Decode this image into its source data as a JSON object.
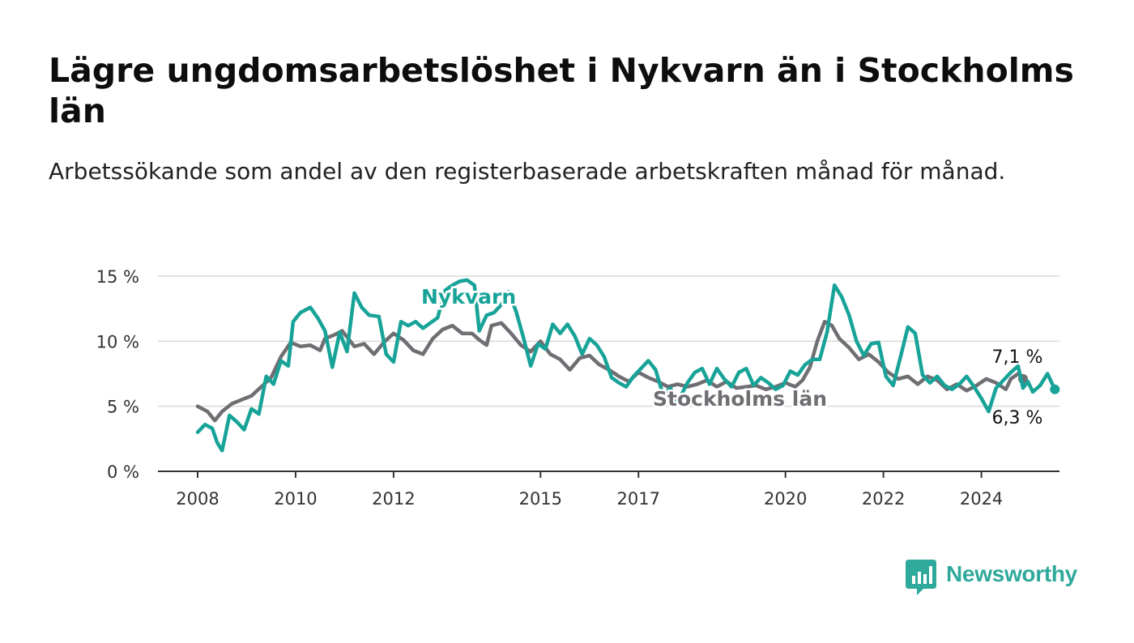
{
  "title": "Lägre ungdomsarbetslöshet i Nykvarn än i Stockholms län",
  "subtitle": "Arbetssökande som andel av den registerbaserade arbetskraften månad för månad.",
  "brand": {
    "name": "Newsworthy",
    "logo_icon": "bar-chart-speech-icon",
    "color": "#2ea99b"
  },
  "chart_data": {
    "type": "line",
    "x_unit": "year",
    "xlim": [
      2008,
      2024.9
    ],
    "ylim": [
      0,
      15
    ],
    "y_ticks": [
      0,
      5,
      10,
      15
    ],
    "y_tick_labels": [
      "0 %",
      "5 %",
      "10 %",
      "15 %"
    ],
    "x_ticks": [
      2008,
      2010,
      2012,
      2015,
      2017,
      2020,
      2022,
      2024
    ],
    "x_tick_labels": [
      "2008",
      "2010",
      "2012",
      "2015",
      "2017",
      "2020",
      "2022",
      "2024"
    ],
    "grid": "horizontal",
    "legend": "direct labels on lines",
    "series": [
      {
        "name": "Stockholms län",
        "color": "#6e6e73",
        "end_label": "7,1 %",
        "points": [
          [
            2008.0,
            5.0
          ],
          [
            2008.2,
            4.6
          ],
          [
            2008.35,
            3.9
          ],
          [
            2008.5,
            4.6
          ],
          [
            2008.7,
            5.2
          ],
          [
            2008.9,
            5.5
          ],
          [
            2009.1,
            5.8
          ],
          [
            2009.3,
            6.5
          ],
          [
            2009.5,
            7.2
          ],
          [
            2009.7,
            8.8
          ],
          [
            2009.9,
            9.9
          ],
          [
            2010.1,
            9.6
          ],
          [
            2010.3,
            9.7
          ],
          [
            2010.5,
            9.3
          ],
          [
            2010.6,
            10.2
          ],
          [
            2010.8,
            10.5
          ],
          [
            2010.95,
            10.8
          ],
          [
            2011.2,
            9.6
          ],
          [
            2011.4,
            9.8
          ],
          [
            2011.6,
            9.0
          ],
          [
            2011.8,
            9.9
          ],
          [
            2012.0,
            10.6
          ],
          [
            2012.2,
            10.1
          ],
          [
            2012.4,
            9.3
          ],
          [
            2012.6,
            9.0
          ],
          [
            2012.8,
            10.2
          ],
          [
            2013.0,
            10.9
          ],
          [
            2013.2,
            11.2
          ],
          [
            2013.4,
            10.6
          ],
          [
            2013.6,
            10.6
          ],
          [
            2013.75,
            10.1
          ],
          [
            2013.9,
            9.7
          ],
          [
            2014.0,
            11.2
          ],
          [
            2014.2,
            11.4
          ],
          [
            2014.4,
            10.6
          ],
          [
            2014.6,
            9.7
          ],
          [
            2014.8,
            9.2
          ],
          [
            2015.0,
            10.0
          ],
          [
            2015.2,
            9.0
          ],
          [
            2015.4,
            8.6
          ],
          [
            2015.6,
            7.8
          ],
          [
            2015.8,
            8.7
          ],
          [
            2016.0,
            8.9
          ],
          [
            2016.2,
            8.2
          ],
          [
            2016.4,
            7.8
          ],
          [
            2016.6,
            7.3
          ],
          [
            2016.8,
            6.9
          ],
          [
            2017.0,
            7.6
          ],
          [
            2017.2,
            7.2
          ],
          [
            2017.4,
            6.9
          ],
          [
            2017.6,
            6.5
          ],
          [
            2017.8,
            6.7
          ],
          [
            2018.0,
            6.5
          ],
          [
            2018.2,
            6.7
          ],
          [
            2018.4,
            7.0
          ],
          [
            2018.6,
            6.5
          ],
          [
            2018.8,
            6.9
          ],
          [
            2019.0,
            6.4
          ],
          [
            2019.2,
            6.5
          ],
          [
            2019.4,
            6.6
          ],
          [
            2019.6,
            6.3
          ],
          [
            2019.8,
            6.5
          ],
          [
            2020.0,
            6.8
          ],
          [
            2020.2,
            6.5
          ],
          [
            2020.35,
            7.0
          ],
          [
            2020.5,
            8.0
          ],
          [
            2020.65,
            10.0
          ],
          [
            2020.8,
            11.5
          ],
          [
            2020.95,
            11.2
          ],
          [
            2021.1,
            10.2
          ],
          [
            2021.3,
            9.5
          ],
          [
            2021.5,
            8.6
          ],
          [
            2021.7,
            9.0
          ],
          [
            2021.9,
            8.4
          ],
          [
            2022.1,
            7.6
          ],
          [
            2022.3,
            7.1
          ],
          [
            2022.5,
            7.3
          ],
          [
            2022.7,
            6.7
          ],
          [
            2022.9,
            7.3
          ],
          [
            2023.1,
            7.0
          ],
          [
            2023.3,
            6.3
          ],
          [
            2023.5,
            6.7
          ],
          [
            2023.7,
            6.2
          ],
          [
            2023.9,
            6.6
          ],
          [
            2024.1,
            7.1
          ],
          [
            2024.3,
            6.8
          ],
          [
            2024.5,
            6.3
          ],
          [
            2024.6,
            7.1
          ],
          [
            2024.75,
            7.5
          ],
          [
            2024.85,
            7.1
          ]
        ]
      },
      {
        "name": "Nykvarn",
        "color": "#17a398",
        "end_label": "6,3 %",
        "points": [
          [
            2008.0,
            3.0
          ],
          [
            2008.15,
            3.6
          ],
          [
            2008.3,
            3.3
          ],
          [
            2008.4,
            2.2
          ],
          [
            2008.5,
            1.6
          ],
          [
            2008.65,
            4.3
          ],
          [
            2008.8,
            3.8
          ],
          [
            2008.95,
            3.2
          ],
          [
            2009.1,
            4.8
          ],
          [
            2009.25,
            4.4
          ],
          [
            2009.4,
            7.3
          ],
          [
            2009.55,
            6.7
          ],
          [
            2009.7,
            8.5
          ],
          [
            2009.85,
            8.1
          ],
          [
            2009.95,
            11.5
          ],
          [
            2010.1,
            12.2
          ],
          [
            2010.3,
            12.6
          ],
          [
            2010.45,
            11.8
          ],
          [
            2010.6,
            10.8
          ],
          [
            2010.75,
            8.0
          ],
          [
            2010.9,
            10.7
          ],
          [
            2011.05,
            9.2
          ],
          [
            2011.2,
            13.7
          ],
          [
            2011.35,
            12.6
          ],
          [
            2011.5,
            12.0
          ],
          [
            2011.7,
            11.9
          ],
          [
            2011.85,
            9.0
          ],
          [
            2012.0,
            8.4
          ],
          [
            2012.15,
            11.5
          ],
          [
            2012.3,
            11.2
          ],
          [
            2012.45,
            11.5
          ],
          [
            2012.6,
            11.0
          ],
          [
            2012.75,
            11.4
          ],
          [
            2012.9,
            11.8
          ],
          [
            2013.05,
            13.9
          ],
          [
            2013.2,
            14.3
          ],
          [
            2013.35,
            14.6
          ],
          [
            2013.5,
            14.7
          ],
          [
            2013.65,
            14.3
          ],
          [
            2013.75,
            10.8
          ],
          [
            2013.9,
            12.0
          ],
          [
            2014.05,
            12.2
          ],
          [
            2014.2,
            12.8
          ],
          [
            2014.35,
            13.8
          ],
          [
            2014.5,
            12.3
          ],
          [
            2014.65,
            10.3
          ],
          [
            2014.8,
            8.1
          ],
          [
            2014.95,
            9.8
          ],
          [
            2015.1,
            9.4
          ],
          [
            2015.25,
            11.3
          ],
          [
            2015.4,
            10.6
          ],
          [
            2015.55,
            11.3
          ],
          [
            2015.7,
            10.4
          ],
          [
            2015.85,
            9.0
          ],
          [
            2016.0,
            10.2
          ],
          [
            2016.15,
            9.7
          ],
          [
            2016.3,
            8.8
          ],
          [
            2016.45,
            7.2
          ],
          [
            2016.6,
            6.8
          ],
          [
            2016.75,
            6.5
          ],
          [
            2016.9,
            7.3
          ],
          [
            2017.05,
            7.9
          ],
          [
            2017.2,
            8.5
          ],
          [
            2017.35,
            7.8
          ],
          [
            2017.5,
            5.9
          ],
          [
            2017.65,
            6.4
          ],
          [
            2017.8,
            5.3
          ],
          [
            2018.0,
            6.8
          ],
          [
            2018.15,
            7.6
          ],
          [
            2018.3,
            7.9
          ],
          [
            2018.45,
            6.7
          ],
          [
            2018.6,
            7.9
          ],
          [
            2018.75,
            7.1
          ],
          [
            2018.9,
            6.5
          ],
          [
            2019.05,
            7.6
          ],
          [
            2019.2,
            7.9
          ],
          [
            2019.35,
            6.6
          ],
          [
            2019.5,
            7.2
          ],
          [
            2019.65,
            6.8
          ],
          [
            2019.8,
            6.3
          ],
          [
            2019.95,
            6.6
          ],
          [
            2020.1,
            7.7
          ],
          [
            2020.25,
            7.4
          ],
          [
            2020.4,
            8.2
          ],
          [
            2020.55,
            8.6
          ],
          [
            2020.7,
            8.6
          ],
          [
            2020.85,
            10.7
          ],
          [
            2021.0,
            14.3
          ],
          [
            2021.15,
            13.4
          ],
          [
            2021.3,
            12.0
          ],
          [
            2021.45,
            10.0
          ],
          [
            2021.6,
            8.9
          ],
          [
            2021.75,
            9.8
          ],
          [
            2021.9,
            9.9
          ],
          [
            2022.05,
            7.3
          ],
          [
            2022.2,
            6.6
          ],
          [
            2022.35,
            8.8
          ],
          [
            2022.5,
            11.1
          ],
          [
            2022.65,
            10.6
          ],
          [
            2022.8,
            7.4
          ],
          [
            2022.95,
            6.8
          ],
          [
            2023.1,
            7.3
          ],
          [
            2023.25,
            6.6
          ],
          [
            2023.4,
            6.3
          ],
          [
            2023.55,
            6.7
          ],
          [
            2023.7,
            7.3
          ],
          [
            2023.85,
            6.5
          ],
          [
            2024.0,
            5.6
          ],
          [
            2024.15,
            4.6
          ],
          [
            2024.3,
            6.4
          ],
          [
            2024.45,
            7.0
          ],
          [
            2024.6,
            7.6
          ],
          [
            2024.75,
            8.1
          ],
          [
            2024.85,
            6.4
          ],
          [
            2024.95,
            6.9
          ],
          [
            2025.05,
            6.1
          ],
          [
            2025.2,
            6.6
          ],
          [
            2025.35,
            7.5
          ],
          [
            2025.5,
            6.3
          ]
        ]
      }
    ]
  }
}
